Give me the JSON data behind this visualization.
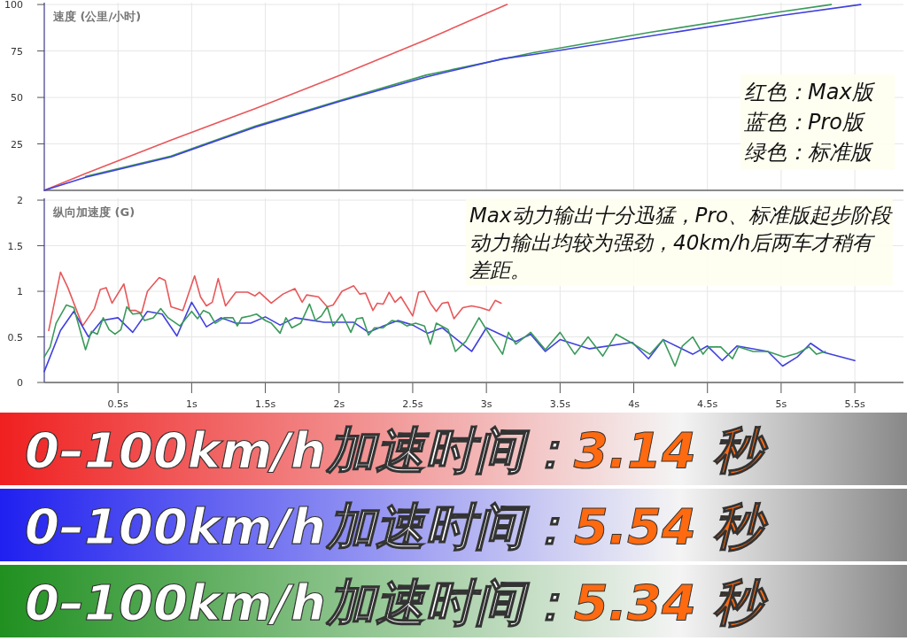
{
  "chart_data": [
    {
      "type": "line",
      "title": "速度 (公里/小时)",
      "xlim": [
        0,
        5.83
      ],
      "ylim": [
        0,
        101
      ],
      "xticks": [
        0.5,
        1,
        1.5,
        2,
        2.5,
        3,
        3.5,
        4,
        4.5,
        5,
        5.5
      ],
      "yticks": [
        25,
        50,
        75,
        100
      ],
      "tick_labels": "y",
      "grid": true,
      "series": [
        {
          "color": "#e8575a",
          "x": [
            0,
            0.28,
            0.86,
            1.43,
            2.01,
            2.59,
            3.14
          ],
          "values": [
            0,
            9,
            27,
            44,
            62,
            81,
            100
          ]
        },
        {
          "color": "#3a9a5a",
          "x": [
            0.28,
            0.86,
            1.43,
            2.01,
            2.59,
            3.31,
            4.11,
            4.99,
            5.34
          ],
          "values": [
            7.5,
            18.5,
            34.5,
            48.5,
            62,
            74,
            85,
            96,
            100
          ]
        },
        {
          "color": "#4040e0",
          "x": [
            0,
            0.28,
            0.86,
            1.43,
            2.01,
            2.59,
            3.11,
            3.31,
            4.11,
            4.99,
            5.54
          ],
          "values": [
            0,
            7,
            18,
            34,
            48,
            61,
            70.8,
            73,
            83,
            94,
            100
          ]
        }
      ],
      "annotations": [
        "红色：Max版",
        "蓝色：Pro版",
        "绿色：标准版"
      ]
    },
    {
      "type": "line",
      "title": "纵向加速度 (G)",
      "xlim": [
        0,
        5.83
      ],
      "ylim": [
        0,
        2.02
      ],
      "xticks": [
        {
          "value": 0.5,
          "label": "0.5s"
        },
        {
          "value": 1,
          "label": "1s"
        },
        {
          "value": 1.5,
          "label": "1.5s"
        },
        {
          "value": 2,
          "label": "2s"
        },
        {
          "value": 2.5,
          "label": "2.5s"
        },
        {
          "value": 3,
          "label": "3s"
        },
        {
          "value": 3.5,
          "label": "3.5s"
        },
        {
          "value": 4,
          "label": "4s"
        },
        {
          "value": 4.5,
          "label": "4.5s"
        },
        {
          "value": 5,
          "label": "5s"
        },
        {
          "value": 5.5,
          "label": "5.5s"
        }
      ],
      "yticks": [
        0,
        0.5,
        1,
        1.5,
        2
      ],
      "grid": true,
      "series": [
        {
          "color": "#e8575a",
          "x": [
            0.03,
            0.11,
            0.16,
            0.26,
            0.34,
            0.38,
            0.42,
            0.46,
            0.54,
            0.58,
            0.62,
            0.66,
            0.7,
            0.78,
            0.82,
            0.86,
            0.94,
            1.02,
            1.06,
            1.1,
            1.14,
            1.18,
            1.23,
            1.3,
            1.38,
            1.43,
            1.46,
            1.54,
            1.62,
            1.7,
            1.75,
            1.78,
            1.86,
            1.92,
            1.96,
            2.02,
            2.1,
            2.14,
            2.18,
            2.23,
            2.26,
            2.3,
            2.34,
            2.38,
            2.42,
            2.5,
            2.54,
            2.58,
            2.62,
            2.66,
            2.7,
            2.74,
            2.78,
            2.84,
            2.9,
            2.96,
            3.02,
            3.06,
            3.1
          ],
          "values": [
            0.57,
            1.21,
            1.04,
            0.62,
            0.81,
            1.02,
            1.04,
            0.87,
            1.08,
            0.79,
            0.79,
            0.76,
            1.0,
            1.15,
            1.12,
            0.83,
            0.79,
            1.17,
            0.94,
            0.84,
            0.88,
            1.14,
            0.84,
            0.99,
            0.99,
            0.95,
            0.99,
            0.87,
            0.97,
            1.03,
            0.88,
            0.96,
            0.94,
            0.83,
            0.85,
            1.0,
            1.06,
            0.97,
            0.98,
            0.79,
            0.87,
            0.86,
            0.99,
            0.88,
            0.94,
            0.73,
            0.99,
            1.0,
            0.87,
            0.78,
            0.87,
            0.88,
            0.7,
            0.82,
            0.84,
            0.82,
            0.79,
            0.9,
            0.87
          ]
        },
        {
          "color": "#4040e0",
          "x": [
            0,
            0.11,
            0.2,
            0.3,
            0.39,
            0.5,
            0.6,
            0.7,
            0.8,
            0.9,
            1.0,
            1.1,
            1.2,
            1.3,
            1.4,
            1.5,
            1.6,
            1.7,
            1.9,
            2.1,
            2.2,
            2.3,
            2.4,
            2.5,
            2.6,
            2.7,
            2.9,
            3.0,
            3.2,
            3.3,
            3.4,
            3.5,
            3.7,
            3.99,
            4.1,
            4.2,
            4.4,
            4.5,
            4.6,
            4.7,
            4.91,
            5.01,
            5.11,
            5.2,
            5.29,
            5.5
          ],
          "values": [
            0.12,
            0.57,
            0.78,
            0.5,
            0.68,
            0.71,
            0.55,
            0.78,
            0.75,
            0.51,
            0.88,
            0.61,
            0.71,
            0.65,
            0.65,
            0.72,
            0.63,
            0.71,
            0.66,
            0.66,
            0.55,
            0.62,
            0.68,
            0.63,
            0.54,
            0.6,
            0.34,
            0.6,
            0.45,
            0.53,
            0.34,
            0.47,
            0.37,
            0.44,
            0.26,
            0.47,
            0.31,
            0.4,
            0.24,
            0.4,
            0.34,
            0.18,
            0.28,
            0.43,
            0.33,
            0.24
          ]
        },
        {
          "color": "#3a9a5a",
          "x": [
            0,
            0.04,
            0.08,
            0.15,
            0.2,
            0.28,
            0.32,
            0.36,
            0.4,
            0.44,
            0.48,
            0.52,
            0.56,
            0.6,
            0.65,
            0.68,
            0.74,
            0.79,
            0.84,
            0.92,
            1.0,
            1.04,
            1.08,
            1.12,
            1.16,
            1.22,
            1.28,
            1.31,
            1.34,
            1.4,
            1.44,
            1.5,
            1.54,
            1.6,
            1.64,
            1.68,
            1.74,
            1.8,
            1.84,
            1.88,
            1.92,
            1.96,
            2.02,
            2.08,
            2.12,
            2.16,
            2.2,
            2.24,
            2.3,
            2.36,
            2.42,
            2.46,
            2.52,
            2.58,
            2.62,
            2.66,
            2.74,
            2.79,
            2.86,
            2.95,
            3.0,
            3.11,
            3.15,
            3.2,
            3.3,
            3.4,
            3.5,
            3.6,
            3.69,
            3.79,
            3.88,
            3.99,
            4.11,
            4.2,
            4.28,
            4.33,
            4.4,
            4.47,
            4.51,
            4.59,
            4.67,
            4.71,
            4.81,
            4.91,
            5.02,
            5.11,
            5.19,
            5.24,
            5.3
          ],
          "values": [
            0.28,
            0.39,
            0.65,
            0.85,
            0.82,
            0.36,
            0.56,
            0.53,
            0.71,
            0.58,
            0.53,
            0.58,
            0.83,
            0.75,
            0.76,
            0.68,
            0.71,
            0.81,
            0.71,
            0.62,
            0.78,
            0.7,
            0.79,
            0.76,
            0.65,
            0.71,
            0.71,
            0.62,
            0.71,
            0.73,
            0.75,
            0.68,
            0.65,
            0.54,
            0.71,
            0.6,
            0.65,
            0.86,
            0.68,
            0.73,
            0.83,
            0.62,
            0.75,
            0.55,
            0.7,
            0.71,
            0.52,
            0.6,
            0.6,
            0.68,
            0.66,
            0.62,
            0.65,
            0.62,
            0.42,
            0.65,
            0.58,
            0.34,
            0.45,
            0.71,
            0.58,
            0.31,
            0.55,
            0.42,
            0.55,
            0.36,
            0.55,
            0.31,
            0.5,
            0.29,
            0.53,
            0.43,
            0.31,
            0.47,
            0.18,
            0.4,
            0.5,
            0.31,
            0.39,
            0.39,
            0.26,
            0.39,
            0.34,
            0.34,
            0.28,
            0.32,
            0.39,
            0.31,
            0.34
          ]
        }
      ],
      "annotations": [
        "Max动力输出十分迅猛，Pro、标准版起步阶段动力输出均较为强劲，40km/h后两车才稍有差距。"
      ]
    },
    {
      "type": "other",
      "colors": [
        "#f02020",
        "#2020f0",
        "#209020"
      ],
      "annotations": [
        "0–100km/h加速时间：3.14 秒",
        "0–100km/h加速时间：5.54 秒",
        "0–100km/h加速时间：5.34 秒"
      ]
    }
  ]
}
